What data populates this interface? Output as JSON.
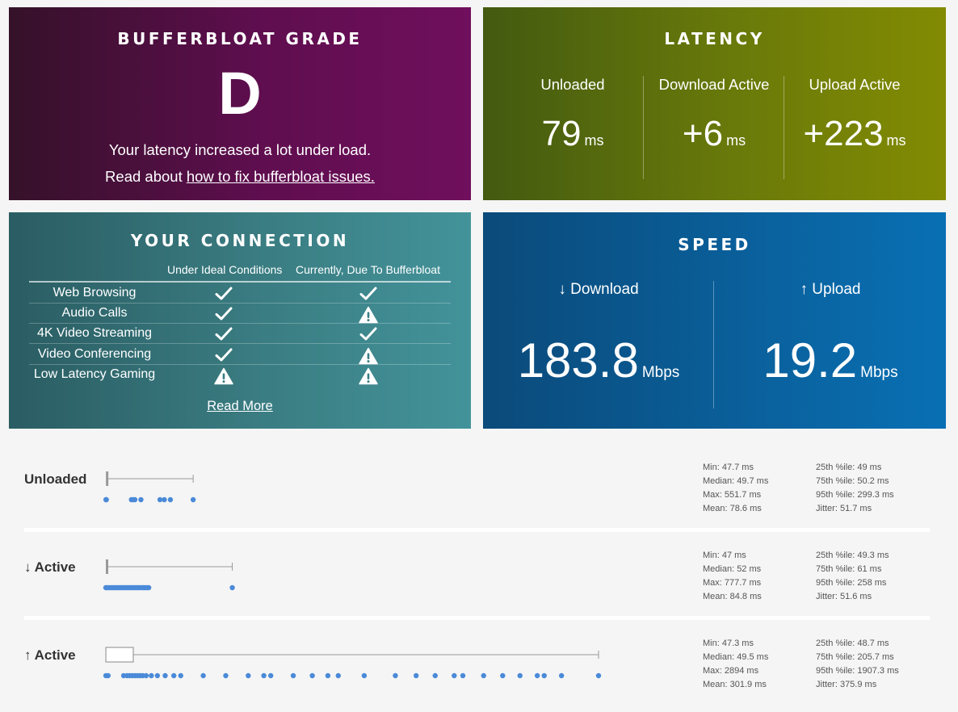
{
  "grade": {
    "title": "BUFFERBLOAT GRADE",
    "letter": "D",
    "line1": "Your latency increased a lot under load.",
    "line2_prefix": "Read about ",
    "line2_link": "how to fix bufferbloat issues."
  },
  "latency": {
    "title": "LATENCY",
    "unit": "ms",
    "columns": [
      {
        "label": "Unloaded",
        "value": "79"
      },
      {
        "label": "Download Active",
        "value": "+6"
      },
      {
        "label": "Upload Active",
        "value": "+223"
      }
    ]
  },
  "connection": {
    "title": "YOUR CONNECTION",
    "col_ideal": "Under Ideal Conditions",
    "col_current": "Currently, Due To Bufferbloat",
    "rows": [
      {
        "label": "Web Browsing",
        "ideal": "check",
        "current": "check"
      },
      {
        "label": "Audio Calls",
        "ideal": "check",
        "current": "warning"
      },
      {
        "label": "4K Video Streaming",
        "ideal": "check",
        "current": "check"
      },
      {
        "label": "Video Conferencing",
        "ideal": "check",
        "current": "warning"
      },
      {
        "label": "Low Latency Gaming",
        "ideal": "warning",
        "current": "warning"
      }
    ],
    "read_more": "Read More"
  },
  "speed": {
    "title": "SPEED",
    "unit": "Mbps",
    "download": {
      "label": "↓ Download",
      "value": "183.8"
    },
    "upload": {
      "label": "↑ Upload",
      "value": "19.2"
    }
  },
  "distributions": [
    {
      "label": "Unloaded",
      "stats_left": [
        "Min: 47.7 ms",
        "Median: 49.7 ms",
        "Max: 551.7 ms",
        "Mean: 78.6 ms"
      ],
      "stats_right": [
        "25th %ile: 49 ms",
        "75th %ile: 50.2 ms",
        "95th %ile: 299.3 ms",
        "Jitter: 51.7 ms"
      ],
      "box": {
        "min": 47.7,
        "q1": 49,
        "median": 49.7,
        "q3": 50.2,
        "max": 551.7
      },
      "points": [
        47.7,
        49,
        50,
        195,
        205,
        215,
        250,
        360,
        385,
        420,
        551.7
      ]
    },
    {
      "label": "↓ Active",
      "stats_left": [
        "Min: 47 ms",
        "Median: 52 ms",
        "Max: 777.7 ms",
        "Mean: 84.8 ms"
      ],
      "stats_right": [
        "25th %ile: 49.3 ms",
        "75th %ile: 61 ms",
        "95th %ile: 258 ms",
        "Jitter: 51.6 ms"
      ],
      "box": {
        "min": 47,
        "q1": 49.3,
        "median": 52,
        "q3": 61,
        "max": 777.7
      },
      "points": [
        47,
        55,
        65,
        75,
        85,
        95,
        105,
        115,
        125,
        135,
        145,
        155,
        165,
        175,
        185,
        195,
        205,
        215,
        225,
        235,
        245,
        258,
        265,
        275,
        285,
        295,
        777.7
      ]
    },
    {
      "label": "↑ Active",
      "stats_left": [
        "Min: 47.3 ms",
        "Median: 49.5 ms",
        "Max: 2894 ms",
        "Mean: 301.9 ms"
      ],
      "stats_right": [
        "25th %ile: 48.7 ms",
        "75th %ile: 205.7 ms",
        "95th %ile: 1907.3 ms",
        "Jitter: 375.9 ms"
      ],
      "box": {
        "min": 47.3,
        "q1": 48.7,
        "median": 49.5,
        "q3": 205.7,
        "max": 2894
      },
      "points": [
        47.3,
        60,
        150,
        170,
        185,
        200,
        215,
        230,
        245,
        260,
        280,
        310,
        345,
        390,
        440,
        480,
        610,
        740,
        870,
        960,
        1000,
        1130,
        1240,
        1330,
        1390,
        1540,
        1720,
        1840,
        1950,
        2060,
        2110,
        2230,
        2340,
        2440,
        2540,
        2580,
        2680,
        2894
      ]
    }
  ],
  "colors": {
    "grade_bg": "#5f0e4f",
    "latency_bg": "#6a7a0a",
    "connection_bg": "#3a7d82",
    "speed_bg": "#0a5f9a",
    "point": "#4a8ad8"
  }
}
